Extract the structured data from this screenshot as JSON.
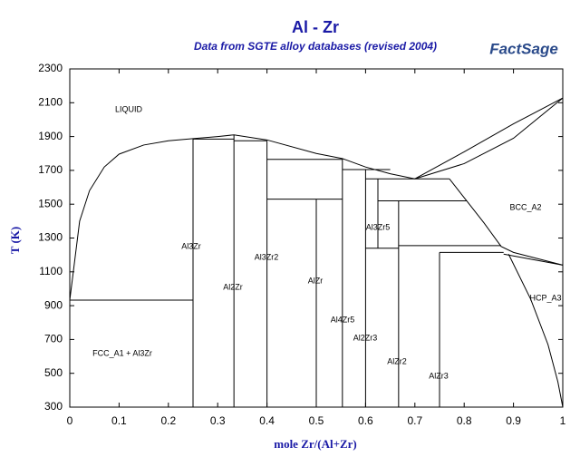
{
  "chart_data": {
    "type": "line",
    "title": "Al - Zr",
    "subtitle": "Data from SGTE alloy databases (revised 2004)",
    "logo": "FactSage",
    "x_label": "mole Zr/(Al+Zr)",
    "y_label": "T (K)",
    "color": "#000000",
    "xlim": [
      0,
      1
    ],
    "ylim": [
      300,
      2300
    ],
    "xticks": [
      0,
      0.1,
      0.2,
      0.3,
      0.4,
      0.5,
      0.6,
      0.7,
      0.8,
      0.9,
      1
    ],
    "yticks": [
      300,
      500,
      700,
      900,
      1100,
      1300,
      1500,
      1700,
      1900,
      2100,
      2300
    ],
    "annotations": [
      "LIQUID",
      "Al3Zr",
      "Al2Zr",
      "Al3Zr2",
      "AlZr",
      "Al4Zr5",
      "Al3Zr5",
      "Al2Zr3",
      "AlZr2",
      "AlZr3",
      "BCC_A2",
      "HCP_A3",
      "FCC_A1 + Al3Zr"
    ],
    "series": [
      {
        "x": [
          0,
          0.02,
          0.04,
          0.07,
          0.1,
          0.15,
          0.2,
          0.25,
          0.3,
          0.333,
          0.4,
          0.5,
          0.553,
          0.6,
          0.65,
          0.7
        ],
        "values": [
          933,
          1400,
          1580,
          1720,
          1796,
          1850,
          1875,
          1888,
          1900,
          1910,
          1880,
          1800,
          1770,
          1720,
          1680,
          1650
        ]
      },
      {
        "x": [
          0.7,
          0.8,
          0.9,
          1
        ],
        "values": [
          1650,
          1810,
          1975,
          2128
        ]
      },
      {
        "x": [
          0.7,
          0.8,
          0.9,
          1
        ],
        "values": [
          1650,
          1740,
          1890,
          2128
        ]
      },
      {
        "x": [
          0.77,
          0.805,
          0.84,
          0.875,
          0.9,
          1
        ],
        "values": [
          1650,
          1520,
          1390,
          1250,
          1215,
          1140
        ]
      },
      {
        "x": [
          0.88,
          1
        ],
        "values": [
          1205,
          1140
        ]
      },
      {
        "x": [
          0.89,
          0.935,
          0.97,
          0.99,
          1
        ],
        "values": [
          1205,
          938,
          670,
          450,
          300
        ]
      },
      {
        "x": [
          0,
          0.25
        ],
        "values": [
          933,
          933
        ]
      },
      {
        "x": [
          0.25,
          0.25
        ],
        "values": [
          300,
          1888
        ]
      },
      {
        "x": [
          0.25,
          0.333
        ],
        "values": [
          1885,
          1885
        ]
      },
      {
        "x": [
          0.333,
          0.333
        ],
        "values": [
          300,
          1910
        ]
      },
      {
        "x": [
          0.333,
          0.4
        ],
        "values": [
          1875,
          1875
        ]
      },
      {
        "x": [
          0.4,
          0.4
        ],
        "values": [
          300,
          1875
        ]
      },
      {
        "x": [
          0.4,
          0.553
        ],
        "values": [
          1765,
          1765
        ]
      },
      {
        "x": [
          0.4,
          0.553
        ],
        "values": [
          1530,
          1530
        ]
      },
      {
        "x": [
          0.5,
          0.5
        ],
        "values": [
          300,
          1530
        ]
      },
      {
        "x": [
          0.553,
          0.553
        ],
        "values": [
          300,
          1770
        ]
      },
      {
        "x": [
          0.553,
          0.65
        ],
        "values": [
          1705,
          1705
        ]
      },
      {
        "x": [
          0.6,
          0.6
        ],
        "values": [
          300,
          1705
        ]
      },
      {
        "x": [
          0.6,
          0.77
        ],
        "values": [
          1650,
          1650
        ]
      },
      {
        "x": [
          0.6,
          0.667
        ],
        "values": [
          1240,
          1240
        ]
      },
      {
        "x": [
          0.625,
          0.625
        ],
        "values": [
          1240,
          1650
        ]
      },
      {
        "x": [
          0.625,
          0.805
        ],
        "values": [
          1520,
          1520
        ]
      },
      {
        "x": [
          0.667,
          0.667
        ],
        "values": [
          300,
          1520
        ]
      },
      {
        "x": [
          0.667,
          0.875
        ],
        "values": [
          1255,
          1255
        ]
      },
      {
        "x": [
          0.75,
          0.75
        ],
        "values": [
          300,
          1215
        ]
      },
      {
        "x": [
          0.75,
          0.88
        ],
        "values": [
          1215,
          1215
        ]
      }
    ]
  }
}
